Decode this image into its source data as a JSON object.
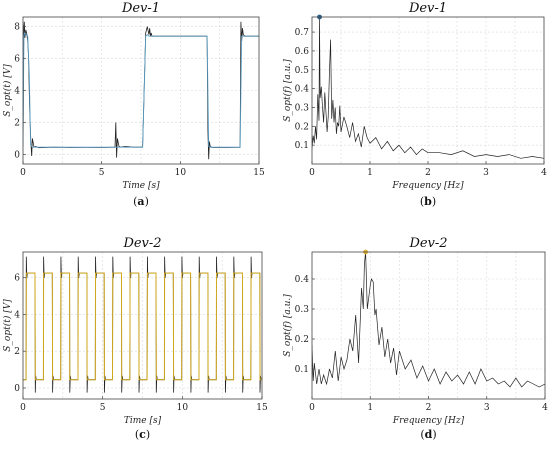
{
  "chart_data": [
    {
      "type": "line",
      "title": "Dev-1",
      "xlabel": "Time [s]",
      "ylabel": "S_opt(t) [V]",
      "xlim": [
        0,
        15
      ],
      "ylim": [
        -0.6,
        8.6
      ],
      "xticks": [
        "0",
        "5",
        "10",
        "15"
      ],
      "xtick_values": [
        0,
        5,
        10,
        15
      ],
      "yticks": [
        "0",
        "2",
        "4",
        "6",
        "8"
      ],
      "ytick_values": [
        0,
        2,
        4,
        6,
        8
      ],
      "caption_letter": "a",
      "grid": true,
      "series": [
        {
          "color": "#222222",
          "width": 0.8,
          "x": [
            0.0,
            0.05,
            0.08,
            0.12,
            0.18,
            0.25,
            0.3,
            0.35,
            0.42,
            0.5,
            0.55,
            0.6,
            0.7,
            0.8,
            1.0,
            2.0,
            3.0,
            4.0,
            5.0,
            5.85,
            5.9,
            5.95,
            6.0,
            6.1,
            6.2,
            6.5,
            7.0,
            7.6,
            7.8,
            7.9,
            8.0,
            8.05,
            8.1,
            8.15,
            8.2,
            8.3,
            8.5,
            9.0,
            10.0,
            11.0,
            11.7,
            11.75,
            11.8,
            11.85,
            11.9,
            12.0,
            12.1,
            12.5,
            13.0,
            13.5,
            13.8,
            13.85,
            13.9,
            13.95,
            14.0,
            14.1,
            14.2,
            14.5,
            15.0
          ],
          "y": [
            0.5,
            7.9,
            8.3,
            7.3,
            7.8,
            7.5,
            7.1,
            6.2,
            3.0,
            0.7,
            -0.1,
            1.0,
            0.45,
            0.5,
            0.42,
            0.45,
            0.43,
            0.44,
            0.43,
            0.45,
            2.0,
            -0.2,
            1.0,
            0.5,
            0.45,
            0.5,
            0.45,
            0.45,
            7.6,
            8.0,
            7.5,
            7.9,
            7.4,
            7.6,
            7.4,
            7.4,
            7.4,
            7.4,
            7.4,
            7.4,
            7.4,
            1.5,
            -0.3,
            0.8,
            0.5,
            0.44,
            0.43,
            0.44,
            0.43,
            0.44,
            0.44,
            8.3,
            7.1,
            7.9,
            7.5,
            7.4,
            7.4,
            7.4,
            7.4
          ]
        },
        {
          "color": "#5a9dc2",
          "width": 0.9,
          "x": [
            0.0,
            0.06,
            0.1,
            0.3,
            0.4,
            0.48,
            0.6,
            1.0,
            5.0,
            5.9,
            6.0,
            6.1,
            7.6,
            7.8,
            7.9,
            8.0,
            11.7,
            11.8,
            11.9,
            13.8,
            13.9,
            14.0,
            15.0
          ],
          "y": [
            0.5,
            7.4,
            7.6,
            7.4,
            5.0,
            0.6,
            0.45,
            0.45,
            0.45,
            0.45,
            0.45,
            0.45,
            0.45,
            7.4,
            7.5,
            7.4,
            7.4,
            0.5,
            0.45,
            0.45,
            7.4,
            7.4,
            7.4
          ]
        }
      ]
    },
    {
      "type": "line",
      "title": "Dev-1",
      "xlabel": "Frequency [Hz]",
      "ylabel": "S_opt(f) [a.u.]",
      "xlim": [
        0,
        4
      ],
      "ylim": [
        0,
        0.78
      ],
      "xticks": [
        "0",
        "1",
        "2",
        "3",
        "4"
      ],
      "xtick_values": [
        0,
        1,
        2,
        3,
        4
      ],
      "yticks": [
        "0.1",
        "0.2",
        "0.3",
        "0.4",
        "0.5",
        "0.6",
        "0.7"
      ],
      "ytick_values": [
        0.1,
        0.2,
        0.3,
        0.4,
        0.5,
        0.6,
        0.7
      ],
      "caption_letter": "b",
      "grid": true,
      "peak_marker": {
        "x": 0.13,
        "y": 0.78,
        "color": "#2a5f86"
      },
      "series": [
        {
          "color": "#222222",
          "width": 0.7,
          "x": [
            0.0,
            0.02,
            0.04,
            0.06,
            0.08,
            0.1,
            0.12,
            0.13,
            0.14,
            0.16,
            0.18,
            0.2,
            0.22,
            0.24,
            0.26,
            0.28,
            0.3,
            0.32,
            0.34,
            0.36,
            0.38,
            0.4,
            0.42,
            0.44,
            0.46,
            0.48,
            0.5,
            0.55,
            0.6,
            0.65,
            0.7,
            0.75,
            0.8,
            0.85,
            0.9,
            0.95,
            1.0,
            1.1,
            1.2,
            1.3,
            1.4,
            1.5,
            1.6,
            1.7,
            1.8,
            1.9,
            2.0,
            2.2,
            2.4,
            2.6,
            2.8,
            3.0,
            3.2,
            3.4,
            3.6,
            3.8,
            4.0
          ],
          "y": [
            0.08,
            0.15,
            0.11,
            0.2,
            0.13,
            0.37,
            0.23,
            0.78,
            0.35,
            0.41,
            0.31,
            0.22,
            0.38,
            0.28,
            0.17,
            0.25,
            0.48,
            0.66,
            0.24,
            0.34,
            0.22,
            0.3,
            0.16,
            0.22,
            0.2,
            0.31,
            0.17,
            0.25,
            0.2,
            0.14,
            0.22,
            0.12,
            0.16,
            0.09,
            0.2,
            0.14,
            0.11,
            0.14,
            0.08,
            0.12,
            0.07,
            0.1,
            0.06,
            0.09,
            0.05,
            0.08,
            0.06,
            0.06,
            0.05,
            0.07,
            0.04,
            0.05,
            0.04,
            0.05,
            0.03,
            0.04,
            0.03
          ]
        }
      ]
    },
    {
      "type": "line",
      "title": "Dev-2",
      "xlabel": "Time [s]",
      "ylabel": "S_opt(t) [V]",
      "xlim": [
        0,
        15
      ],
      "ylim": [
        -0.6,
        7.4
      ],
      "xticks": [
        "0",
        "5",
        "10",
        "15"
      ],
      "xtick_values": [
        0,
        5,
        10,
        15
      ],
      "yticks": [
        "0",
        "2",
        "4",
        "6"
      ],
      "ytick_values": [
        0,
        2,
        4,
        6
      ],
      "caption_letter": "c",
      "grid": true,
      "square_wave": {
        "high": 6.25,
        "low": 0.45,
        "first_rise": 0.2,
        "fall_offset": 0.56,
        "period": 1.085
      },
      "series": [
        {
          "color": "#222222",
          "width": 0.8,
          "overshoot": 0.9,
          "undershoot": 0.7
        },
        {
          "color": "#d4aa1e",
          "width": 1.0,
          "overshoot": 0,
          "undershoot": 0
        }
      ]
    },
    {
      "type": "line",
      "title": "Dev-2",
      "xlabel": "Frequency [Hz]",
      "ylabel": "S_opt(f) [a.u.]",
      "xlim": [
        0,
        4
      ],
      "ylim": [
        0,
        0.49
      ],
      "xticks": [
        "0",
        "1",
        "2",
        "3",
        "4"
      ],
      "xtick_values": [
        0,
        1,
        2,
        3,
        4
      ],
      "yticks": [
        "0.1",
        "0.2",
        "0.3",
        "0.4"
      ],
      "ytick_values": [
        0.1,
        0.2,
        0.3,
        0.4
      ],
      "caption_letter": "d",
      "grid": true,
      "peak_marker": {
        "x": 0.92,
        "y": 0.49,
        "color": "#e0b23a"
      },
      "series": [
        {
          "color": "#222222",
          "width": 0.7,
          "x": [
            0.0,
            0.02,
            0.04,
            0.08,
            0.12,
            0.16,
            0.2,
            0.25,
            0.3,
            0.35,
            0.4,
            0.45,
            0.5,
            0.55,
            0.6,
            0.65,
            0.7,
            0.75,
            0.8,
            0.85,
            0.88,
            0.9,
            0.92,
            0.95,
            1.0,
            1.02,
            1.05,
            1.08,
            1.1,
            1.15,
            1.2,
            1.25,
            1.3,
            1.35,
            1.4,
            1.45,
            1.5,
            1.6,
            1.7,
            1.8,
            1.9,
            2.0,
            2.1,
            2.2,
            2.3,
            2.4,
            2.5,
            2.6,
            2.7,
            2.8,
            2.9,
            3.0,
            3.1,
            3.2,
            3.3,
            3.4,
            3.5,
            3.6,
            3.7,
            3.8,
            3.9,
            4.0
          ],
          "y": [
            0.18,
            0.06,
            0.12,
            0.05,
            0.1,
            0.05,
            0.08,
            0.05,
            0.1,
            0.07,
            0.16,
            0.06,
            0.14,
            0.1,
            0.13,
            0.2,
            0.16,
            0.28,
            0.12,
            0.37,
            0.3,
            0.45,
            0.49,
            0.3,
            0.38,
            0.4,
            0.39,
            0.28,
            0.3,
            0.18,
            0.24,
            0.14,
            0.2,
            0.12,
            0.17,
            0.08,
            0.16,
            0.1,
            0.13,
            0.07,
            0.11,
            0.06,
            0.1,
            0.05,
            0.09,
            0.06,
            0.08,
            0.05,
            0.09,
            0.05,
            0.1,
            0.06,
            0.07,
            0.05,
            0.06,
            0.04,
            0.07,
            0.04,
            0.06,
            0.05,
            0.04,
            0.05
          ]
        }
      ]
    }
  ]
}
